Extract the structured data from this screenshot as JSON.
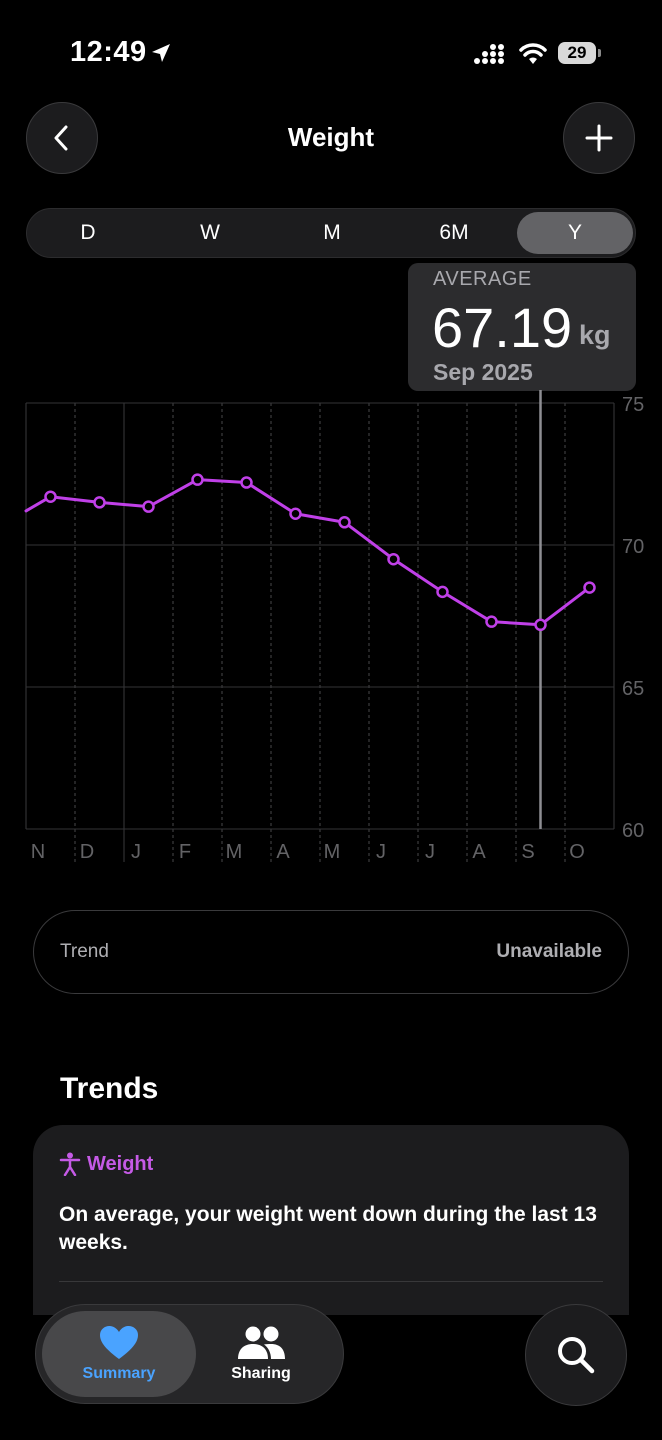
{
  "status_bar": {
    "time": "12:49",
    "battery": "29"
  },
  "nav": {
    "title": "Weight"
  },
  "segments": [
    "D",
    "W",
    "M",
    "6M",
    "Y"
  ],
  "selected_segment": "Y",
  "callout": {
    "label": "AVERAGE",
    "value": "67.19",
    "unit": "kg",
    "date": "Sep 2025"
  },
  "chart_data": {
    "type": "line",
    "categories": [
      "N",
      "D",
      "J",
      "F",
      "M",
      "A",
      "M",
      "J",
      "J",
      "A",
      "S",
      "O"
    ],
    "x_start_value": 71.2,
    "values": [
      71.7,
      71.5,
      71.35,
      72.3,
      72.2,
      71.1,
      70.8,
      69.5,
      68.35,
      67.3,
      67.19,
      68.5
    ],
    "y_ticks": [
      75,
      70,
      65,
      60
    ],
    "ylim": [
      60,
      75
    ],
    "selected_index": 10,
    "line_color": "#c040e8",
    "grid": true
  },
  "trend": {
    "label": "Trend",
    "value": "Unavailable"
  },
  "trends_section": {
    "heading": "Trends",
    "card_title": "Weight",
    "card_body": "On average, your weight went down during the last 13 weeks."
  },
  "tabbar": {
    "summary": "Summary",
    "sharing": "Sharing"
  },
  "colors": {
    "accent_blue": "#4aa3ff",
    "accent_purple": "#c55ae6"
  }
}
